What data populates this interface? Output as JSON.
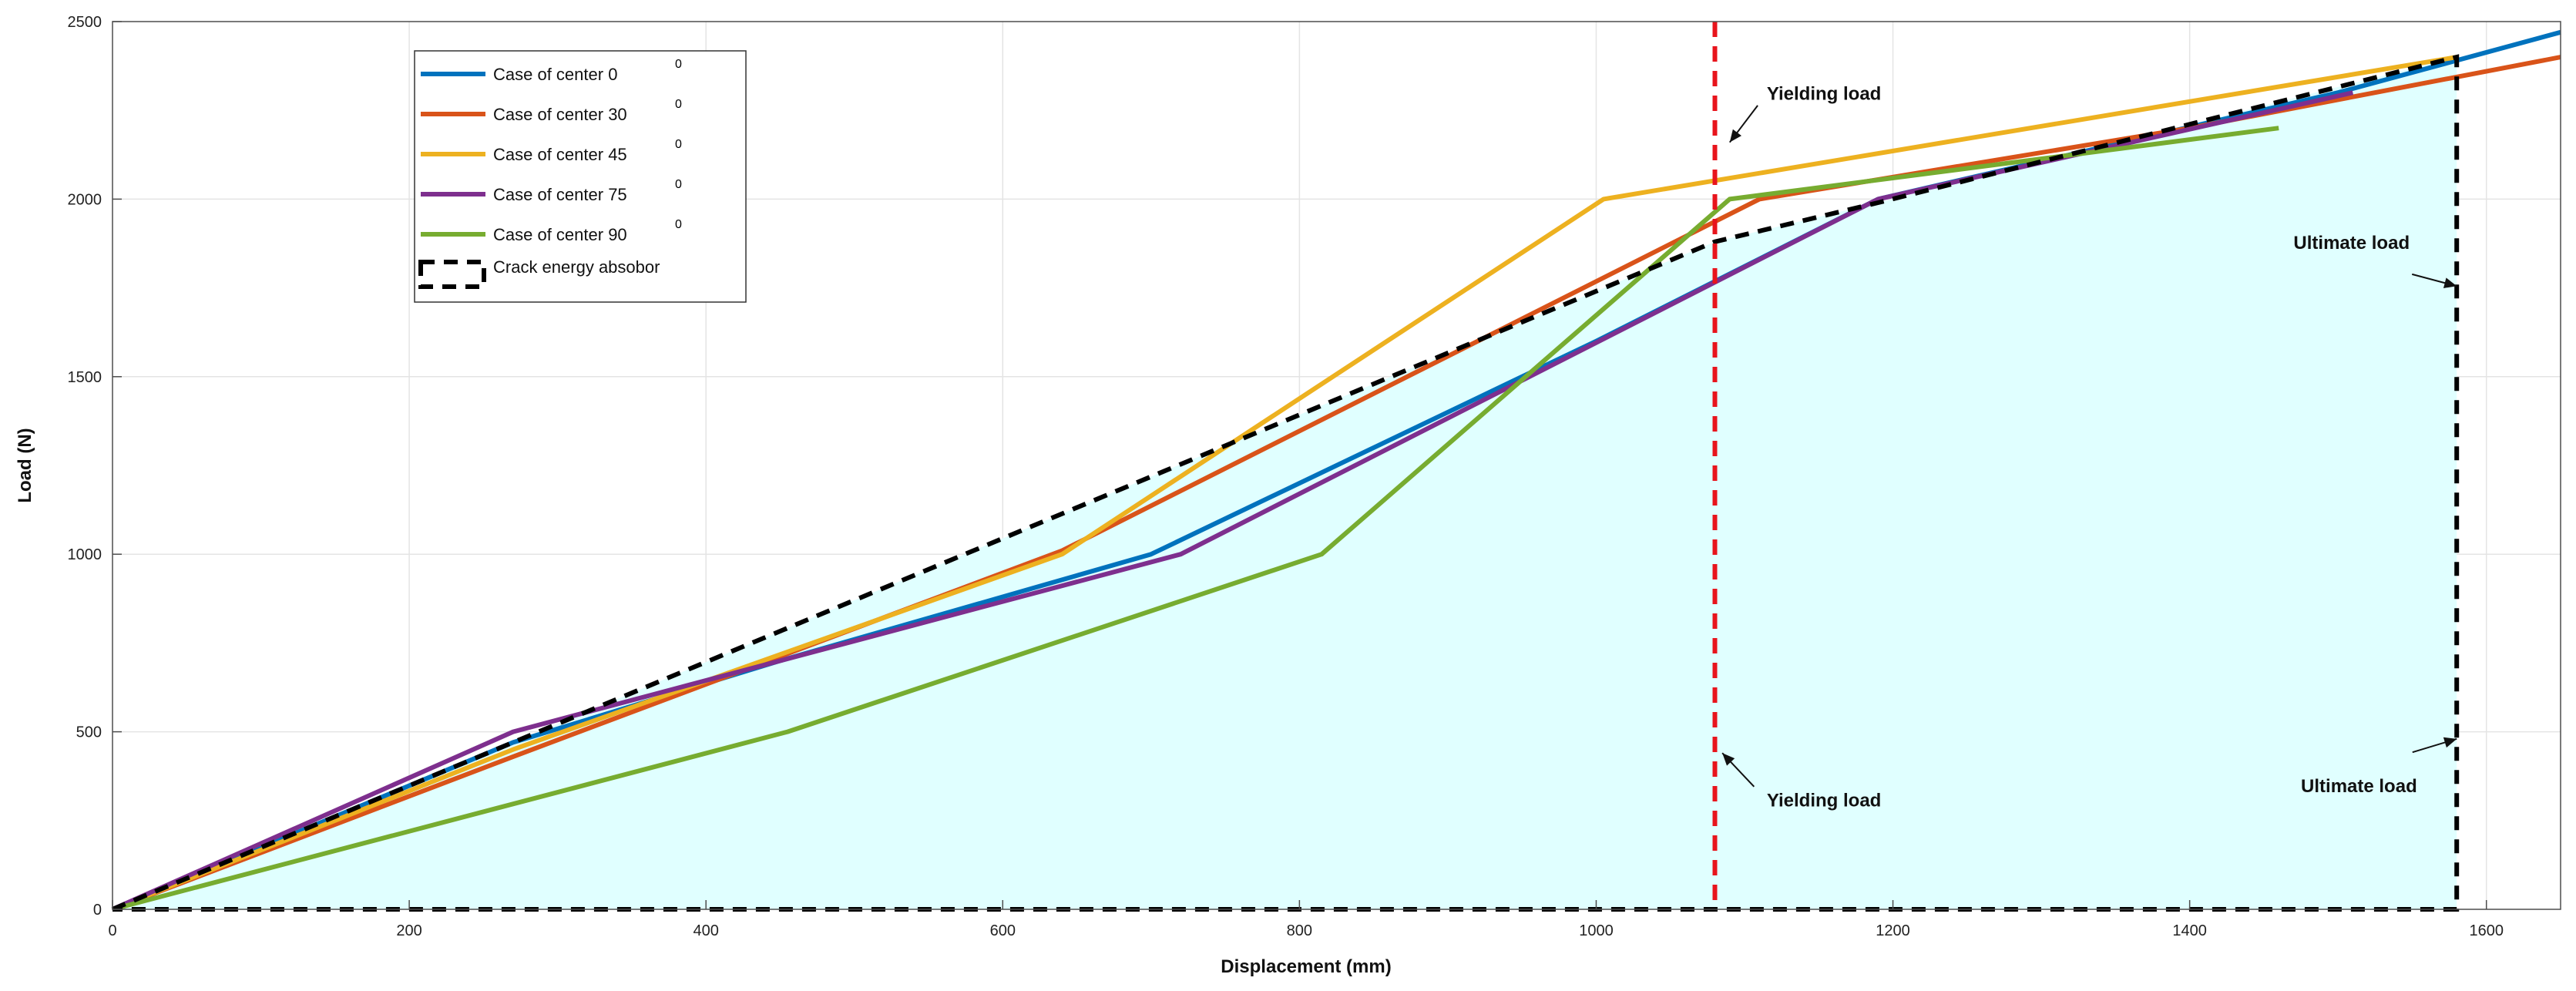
{
  "chart_data": {
    "type": "line",
    "xlabel": "Displacement (mm)",
    "ylabel": "Load (N)",
    "xlim": [
      0,
      1650
    ],
    "ylim": [
      0,
      2500
    ],
    "xticks": [
      0,
      200,
      400,
      600,
      800,
      1000,
      1200,
      1400,
      1600
    ],
    "yticks": [
      0,
      500,
      1000,
      1500,
      2000,
      2500
    ],
    "xtick_labels": [
      "0",
      "200",
      "400",
      "600",
      "800",
      "1000",
      "1200",
      "1400",
      "1600"
    ],
    "ytick_labels": [
      "0",
      "500",
      "1000",
      "1500",
      "2000",
      "2500"
    ],
    "grid": true,
    "legend_position": "top-left",
    "series": [
      {
        "name": "Case of center 0",
        "superscript": "0",
        "color": "#0072BD",
        "x": [
          0,
          270,
          450,
          700,
          1000,
          1190,
          1500,
          1650
        ],
        "y": [
          0,
          470,
          700,
          1000,
          1600,
          2000,
          2300,
          2470
        ]
      },
      {
        "name": "Case of center 30",
        "superscript": "0",
        "color": "#D95319",
        "x": [
          0,
          270,
          640,
          1110,
          1400,
          1650
        ],
        "y": [
          0,
          430,
          1010,
          2000,
          2200,
          2400
        ]
      },
      {
        "name": "Case of center 45",
        "superscript": "0",
        "color": "#EDB120",
        "x": [
          0,
          270,
          640,
          1005,
          1580
        ],
        "y": [
          0,
          450,
          1000,
          2000,
          2400
        ]
      },
      {
        "name": "Case of center 75",
        "superscript": "0",
        "color": "#7E2F8E",
        "x": [
          0,
          270,
          720,
          1190,
          1510
        ],
        "y": [
          0,
          500,
          1000,
          2000,
          2300
        ]
      },
      {
        "name": "Case of center 90",
        "superscript": "0",
        "color": "#77AC30",
        "x": [
          0,
          455,
          815,
          1090,
          1460
        ],
        "y": [
          0,
          500,
          1000,
          2000,
          2200
        ]
      },
      {
        "name": "Crack energy absobor",
        "superscript": "",
        "color": "#000000",
        "dashed": true,
        "fill": "#E0FFFF",
        "x": [
          0,
          270,
          1080,
          1190,
          1580,
          1580,
          0
        ],
        "y": [
          0,
          470,
          1880,
          1990,
          2400,
          0,
          0
        ]
      }
    ],
    "reference_lines": [
      {
        "x": 1080,
        "color": "#E8141C",
        "dashed": true
      }
    ],
    "annotations": [
      {
        "text": "Yielding load",
        "x": 1115,
        "y": 2280,
        "arrow_to": [
          1090,
          2160
        ]
      },
      {
        "text": "Yielding load",
        "x": 1115,
        "y": 290,
        "arrow_to": [
          1085,
          440
        ]
      },
      {
        "text": "Ultimate load",
        "x": 1470,
        "y": 1860,
        "arrow_to": [
          1580,
          1755
        ]
      },
      {
        "text": "Ultimate load",
        "x": 1475,
        "y": 330,
        "arrow_to": [
          1580,
          480
        ]
      }
    ]
  }
}
